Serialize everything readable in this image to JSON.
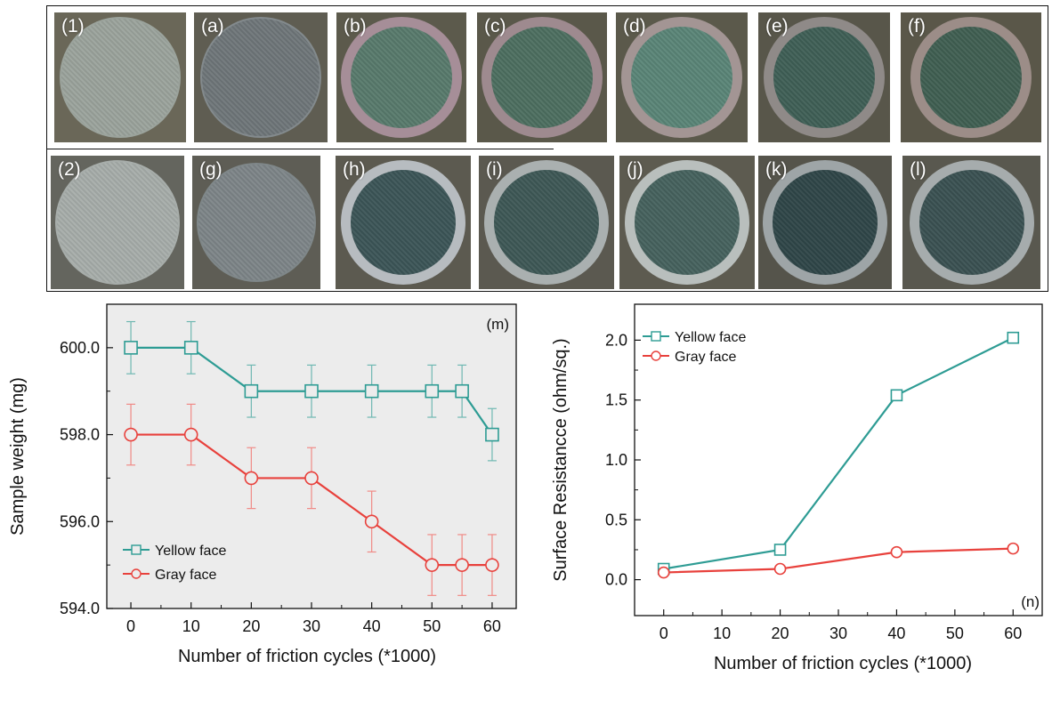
{
  "photos": {
    "row1": [
      {
        "label": "(1)",
        "bg": "#6a6758",
        "disc": "#9ba39c",
        "inner": "#9ba39c",
        "ring": false
      },
      {
        "label": "(a)",
        "bg": "#5f5d52",
        "disc": "#838a8d",
        "inner": "#6f7679",
        "ring": false
      },
      {
        "label": "(b)",
        "bg": "#5c5a4c",
        "disc": "#a68e98",
        "inner": "#587a6c",
        "ring": true
      },
      {
        "label": "(c)",
        "bg": "#5a584a",
        "disc": "#9e8a8f",
        "inner": "#4d6f60",
        "ring": true
      },
      {
        "label": "(d)",
        "bg": "#5b594b",
        "disc": "#a39594",
        "inner": "#5a8577",
        "ring": true
      },
      {
        "label": "(e)",
        "bg": "#58564a",
        "disc": "#8f8a88",
        "inner": "#3f5f56",
        "ring": true
      },
      {
        "label": "(f)",
        "bg": "#5a5749",
        "disc": "#9c8d88",
        "inner": "#405f52",
        "ring": true
      }
    ],
    "row2": [
      {
        "label": "(2)",
        "bg": "#64655e",
        "disc": "#a7adaa",
        "inner": "#a7adaa",
        "ring": false
      },
      {
        "label": "(g)",
        "bg": "#5e5d55",
        "disc": "#7f8789",
        "inner": "#7d8588",
        "ring": false
      },
      {
        "label": "(h)",
        "bg": "#5c5a50",
        "disc": "#b7bcc0",
        "inner": "#3c5557",
        "ring": true
      },
      {
        "label": "(i)",
        "bg": "#5b5950",
        "disc": "#aab0b0",
        "inner": "#3e5856",
        "ring": true
      },
      {
        "label": "(j)",
        "bg": "#5d5b50",
        "disc": "#b9bfbd",
        "inner": "#46625e",
        "ring": true
      },
      {
        "label": "(k)",
        "bg": "#55544b",
        "disc": "#9ea5a7",
        "inner": "#2f4648",
        "ring": true
      },
      {
        "label": "(l)",
        "bg": "#59584f",
        "disc": "#a6acad",
        "inner": "#3a5152",
        "ring": true
      }
    ]
  },
  "chart_data": [
    {
      "type": "line",
      "panel_label": "(m)",
      "xlabel": "Number of friction cycles (*1000)",
      "ylabel": "Sample weight (mg)",
      "xlim": [
        -4,
        64
      ],
      "ylim": [
        594.0,
        601.0
      ],
      "xticks": [
        0,
        10,
        20,
        30,
        40,
        50,
        60
      ],
      "yticks": [
        "594.0",
        "596.0",
        "598.0",
        "600.0"
      ],
      "ytick_values": [
        594,
        596,
        598,
        600
      ],
      "legend_position": "lower-left",
      "series": [
        {
          "name": "Yellow face",
          "marker": "square",
          "color": "#2e9c94",
          "x": [
            0,
            10,
            20,
            30,
            40,
            50,
            55,
            60
          ],
          "y": [
            600,
            600,
            599,
            599,
            599,
            599,
            599,
            598
          ],
          "err": [
            0.6,
            0.6,
            0.6,
            0.6,
            0.6,
            0.6,
            0.6,
            0.6
          ]
        },
        {
          "name": "Gray face",
          "marker": "circle",
          "color": "#e8413c",
          "x": [
            0,
            10,
            20,
            30,
            40,
            50,
            55,
            60
          ],
          "y": [
            598,
            598,
            597,
            597,
            596,
            595,
            595,
            595
          ],
          "err": [
            0.7,
            0.7,
            0.7,
            0.7,
            0.7,
            0.7,
            0.7,
            0.7
          ]
        }
      ]
    },
    {
      "type": "line",
      "panel_label": "(n)",
      "xlabel": "Number of friction cycles (*1000)",
      "ylabel": "Surface Resistancce (ohm/sq.)",
      "xlim": [
        -5,
        65
      ],
      "ylim": [
        -0.3,
        2.3
      ],
      "xticks": [
        0,
        10,
        20,
        30,
        40,
        50,
        60
      ],
      "yticks": [
        "0.0",
        "0.5",
        "1.0",
        "1.5",
        "2.0"
      ],
      "ytick_values": [
        0,
        0.5,
        1.0,
        1.5,
        2.0
      ],
      "legend_position": "top-left",
      "series": [
        {
          "name": "Yellow face",
          "marker": "square",
          "color": "#2e9c94",
          "x": [
            0,
            20,
            40,
            60
          ],
          "y": [
            0.09,
            0.25,
            1.54,
            2.02
          ],
          "err": [
            0.02,
            0.02,
            0.02,
            0.03
          ]
        },
        {
          "name": "Gray face",
          "marker": "circle",
          "color": "#e8413c",
          "x": [
            0,
            20,
            40,
            60
          ],
          "y": [
            0.06,
            0.09,
            0.23,
            0.26
          ],
          "err": [
            0.02,
            0.02,
            0.02,
            0.02
          ]
        }
      ]
    }
  ]
}
